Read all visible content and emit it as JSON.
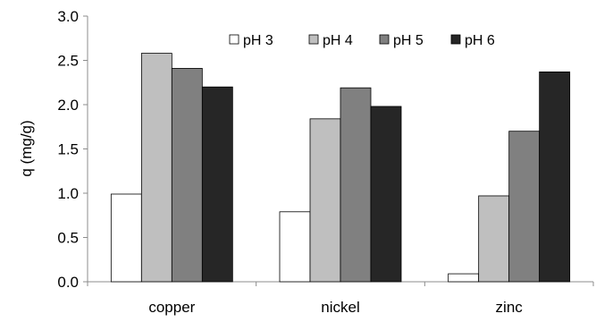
{
  "chart_data": {
    "type": "bar",
    "title": "",
    "xlabel": "",
    "ylabel": "q (mg/g)",
    "ylim": [
      0,
      3
    ],
    "yticks": [
      "0.0",
      "0.5",
      "1.0",
      "1.5",
      "2.0",
      "2.5",
      "3.0"
    ],
    "categories": [
      "copper",
      "nickel",
      "zinc"
    ],
    "series": [
      {
        "name": "pH 3",
        "color": "#ffffff",
        "values": [
          0.99,
          0.79,
          0.09
        ]
      },
      {
        "name": "pH 4",
        "color": "#bfbfbf",
        "values": [
          2.58,
          1.84,
          0.97
        ]
      },
      {
        "name": "pH 5",
        "color": "#808080",
        "values": [
          2.41,
          2.19,
          1.7
        ]
      },
      {
        "name": "pH 6",
        "color": "#262626",
        "values": [
          2.2,
          1.98,
          2.37
        ]
      }
    ],
    "grid": false,
    "legend_position": "top-right"
  }
}
